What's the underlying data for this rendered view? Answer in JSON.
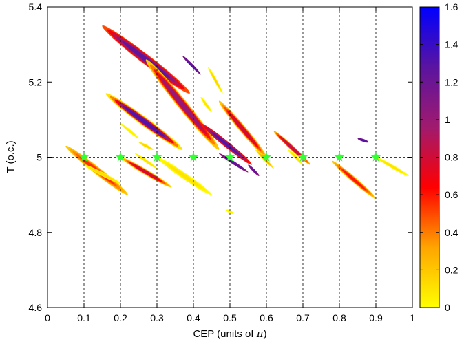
{
  "chart_data": {
    "type": "heatmap",
    "title": "",
    "xlabel_text": "CEP (units of ",
    "xlabel_symbol": "π",
    "xlabel_close": ")",
    "ylabel": "T (o.c.)",
    "xlim": [
      0,
      1
    ],
    "ylim": [
      4.6,
      5.4
    ],
    "x_ticks": [
      "0",
      "0.1",
      "0.2",
      "0.3",
      "0.4",
      "0.5",
      "0.6",
      "0.7",
      "0.8",
      "0.9",
      "1"
    ],
    "y_ticks": [
      "4.6",
      "4.8",
      "5",
      "5.2",
      "5.4"
    ],
    "colorbar_ticks": [
      "0",
      "0.2",
      "0.4",
      "0.6",
      "0.8",
      "1",
      "1.2",
      "1.4",
      "1.6"
    ],
    "colorbar_range": [
      0,
      1.6
    ],
    "colormap": [
      "#ffff00",
      "#ffa500",
      "#ff0000",
      "#a01a6e",
      "#5a14a0",
      "#0000ff"
    ],
    "vertical_gridlines_at": [
      0.1,
      0.2,
      0.3,
      0.4,
      0.5,
      0.6,
      0.7,
      0.8,
      0.9
    ],
    "horizontal_reference_at": 5.0,
    "star_markers": {
      "color": "#33ff33",
      "points": [
        {
          "x": 0.1,
          "y": 5.0
        },
        {
          "x": 0.2,
          "y": 5.0
        },
        {
          "x": 0.3,
          "y": 5.0
        },
        {
          "x": 0.4,
          "y": 5.0
        },
        {
          "x": 0.5,
          "y": 5.0
        },
        {
          "x": 0.6,
          "y": 5.0
        },
        {
          "x": 0.7,
          "y": 5.0
        },
        {
          "x": 0.8,
          "y": 5.0
        },
        {
          "x": 0.9,
          "y": 5.0
        }
      ]
    },
    "regions": [
      {
        "x1": 0.05,
        "y1": 5.03,
        "x2": 0.22,
        "y2": 4.9,
        "lo": 0.2,
        "hi": 0.55
      },
      {
        "x1": 0.1,
        "y1": 4.98,
        "x2": 0.2,
        "y2": 4.93,
        "lo": 0.02,
        "hi": 0.12
      },
      {
        "x1": 0.2,
        "y1": 5.0,
        "x2": 0.34,
        "y2": 4.92,
        "lo": 0.15,
        "hi": 0.8
      },
      {
        "x1": 0.24,
        "y1": 5.01,
        "x2": 0.3,
        "y2": 4.97,
        "lo": 0.03,
        "hi": 0.1
      },
      {
        "x1": 0.3,
        "y1": 5.0,
        "x2": 0.45,
        "y2": 4.9,
        "lo": 0.0,
        "hi": 0.1
      },
      {
        "x1": 0.49,
        "y1": 4.86,
        "x2": 0.51,
        "y2": 4.85,
        "lo": 0.0,
        "hi": 0.05
      },
      {
        "x1": 0.2,
        "y1": 5.09,
        "x2": 0.25,
        "y2": 5.05,
        "lo": 0.0,
        "hi": 0.05
      },
      {
        "x1": 0.25,
        "y1": 5.04,
        "x2": 0.29,
        "y2": 5.02,
        "lo": 0.05,
        "hi": 0.15
      },
      {
        "x1": 0.16,
        "y1": 5.17,
        "x2": 0.37,
        "y2": 5.02,
        "lo": 0.1,
        "hi": 1.3
      },
      {
        "x1": 0.15,
        "y1": 5.35,
        "x2": 0.39,
        "y2": 5.17,
        "lo": 0.5,
        "hi": 1.25
      },
      {
        "x1": 0.27,
        "y1": 5.26,
        "x2": 0.47,
        "y2": 5.02,
        "lo": 0.2,
        "hi": 1.0
      },
      {
        "x1": 0.42,
        "y1": 5.09,
        "x2": 0.56,
        "y2": 4.98,
        "lo": 0.6,
        "hi": 1.3
      },
      {
        "x1": 0.37,
        "y1": 5.27,
        "x2": 0.42,
        "y2": 5.22,
        "lo": 1.1,
        "hi": 1.3
      },
      {
        "x1": 0.44,
        "y1": 5.24,
        "x2": 0.48,
        "y2": 5.17,
        "lo": 0.0,
        "hi": 0.15
      },
      {
        "x1": 0.42,
        "y1": 5.16,
        "x2": 0.45,
        "y2": 5.12,
        "lo": 0.0,
        "hi": 0.1
      },
      {
        "x1": 0.47,
        "y1": 5.15,
        "x2": 0.6,
        "y2": 5.0,
        "lo": 0.2,
        "hi": 0.8
      },
      {
        "x1": 0.47,
        "y1": 5.01,
        "x2": 0.55,
        "y2": 4.96,
        "lo": 1.0,
        "hi": 1.3
      },
      {
        "x1": 0.55,
        "y1": 4.98,
        "x2": 0.58,
        "y2": 4.95,
        "lo": 1.05,
        "hi": 1.25
      },
      {
        "x1": 0.57,
        "y1": 5.02,
        "x2": 0.62,
        "y2": 4.97,
        "lo": 0.05,
        "hi": 0.3
      },
      {
        "x1": 0.62,
        "y1": 5.07,
        "x2": 0.72,
        "y2": 4.98,
        "lo": 0.3,
        "hi": 0.9
      },
      {
        "x1": 0.66,
        "y1": 5.02,
        "x2": 0.7,
        "y2": 4.98,
        "lo": 0.0,
        "hi": 0.1
      },
      {
        "x1": 0.78,
        "y1": 4.99,
        "x2": 0.9,
        "y2": 4.89,
        "lo": 0.2,
        "hi": 0.6
      },
      {
        "x1": 0.85,
        "y1": 5.05,
        "x2": 0.88,
        "y2": 5.04,
        "lo": 1.15,
        "hi": 1.3
      },
      {
        "x1": 0.9,
        "y1": 5.0,
        "x2": 0.99,
        "y2": 4.95,
        "lo": 0.0,
        "hi": 0.1
      }
    ]
  }
}
